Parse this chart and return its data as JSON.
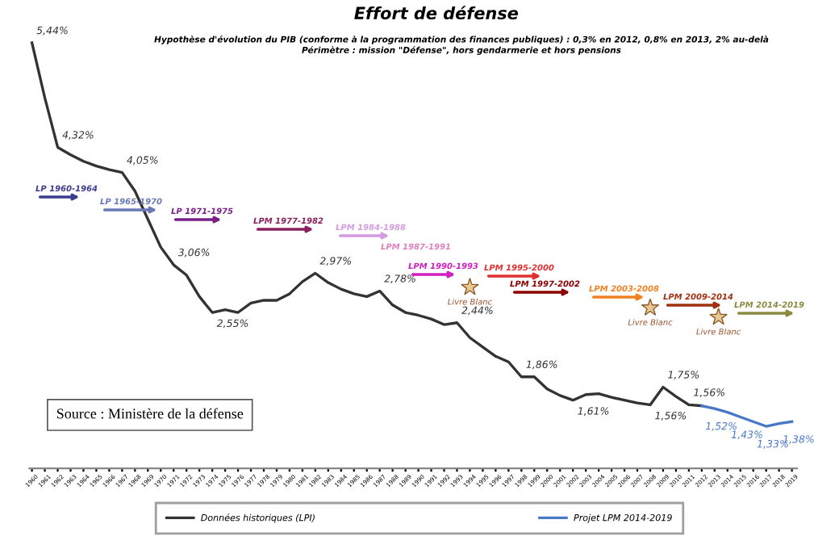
{
  "chart_data": {
    "type": "line",
    "title": "Effort de défense",
    "subtitle": "Hypothèse d'évolution du PIB (conforme à la programmation des finances publiques) : 0,3% en 2012, 0,8% en 2013, 2% au-delà\nPérimètre : mission \"Défense\", hors gendarmerie et hors pensions",
    "xlim": [
      1959.8,
      2019.4
    ],
    "xticks": [
      1960,
      1961,
      1962,
      1963,
      1964,
      1965,
      1966,
      1967,
      1968,
      1969,
      1970,
      1971,
      1972,
      1973,
      1974,
      1975,
      1976,
      1977,
      1978,
      1979,
      1980,
      1981,
      1982,
      1983,
      1984,
      1985,
      1986,
      1987,
      1988,
      1989,
      1990,
      1991,
      1992,
      1993,
      1994,
      1995,
      1996,
      1997,
      1998,
      1999,
      2000,
      2001,
      2002,
      2003,
      2004,
      2005,
      2006,
      2007,
      2008,
      2009,
      2010,
      2011,
      2012,
      2013,
      2014,
      2015,
      2016,
      2017,
      2018,
      2019
    ],
    "legend": "bottom",
    "grid": false,
    "marker": "none",
    "line_style": "solid",
    "series": [
      {
        "name": "Données historiques (LPI)",
        "color": "#333333",
        "x": [
          1960,
          1961,
          1962,
          1963,
          1964,
          1965,
          1966,
          1967,
          1968,
          1969,
          1970,
          1971,
          1972,
          1973,
          1974,
          1975,
          1976,
          1977,
          1978,
          1979,
          1980,
          1981,
          1982,
          1983,
          1984,
          1985,
          1986,
          1987,
          1988,
          1989,
          1990,
          1991,
          1992,
          1993,
          1994,
          1995,
          1996,
          1997,
          1998,
          1999,
          2000,
          2001,
          2002,
          2003,
          2004,
          2005,
          2006,
          2007,
          2008,
          2009,
          2010,
          2011,
          2012
        ],
        "values": [
          5.44,
          4.85,
          4.32,
          4.24,
          4.17,
          4.12,
          4.08,
          4.05,
          3.85,
          3.55,
          3.25,
          3.06,
          2.95,
          2.72,
          2.55,
          2.58,
          2.55,
          2.65,
          2.68,
          2.68,
          2.75,
          2.88,
          2.97,
          2.87,
          2.8,
          2.75,
          2.72,
          2.78,
          2.63,
          2.55,
          2.52,
          2.48,
          2.42,
          2.44,
          2.28,
          2.18,
          2.08,
          2.02,
          1.86,
          1.86,
          1.73,
          1.66,
          1.61,
          1.67,
          1.68,
          1.64,
          1.61,
          1.58,
          1.56,
          1.75,
          1.65,
          1.56,
          1.55
        ],
        "value_labels": [
          "5,44%",
          null,
          "4,32%",
          null,
          null,
          null,
          null,
          "4,05%",
          null,
          null,
          null,
          "3,06%",
          null,
          null,
          "2,55%",
          null,
          null,
          null,
          null,
          null,
          null,
          null,
          "2,97%",
          null,
          null,
          null,
          null,
          "2,78%",
          null,
          null,
          null,
          null,
          null,
          "2,44%",
          null,
          null,
          null,
          null,
          "1,86%",
          null,
          null,
          null,
          "1,61%",
          null,
          null,
          null,
          null,
          null,
          "1,56%",
          "1,75%",
          null,
          "1,56%",
          null
        ]
      },
      {
        "name": "Projet LPM 2014-2019",
        "color": "#4a78c8",
        "x": [
          2012,
          2013,
          2014,
          2015,
          2016,
          2017,
          2018,
          2019
        ],
        "values": [
          1.55,
          1.52,
          1.48,
          1.43,
          1.38,
          1.33,
          1.36,
          1.38
        ],
        "value_labels": [
          null,
          "1,52%",
          null,
          "1,43%",
          null,
          "1,33%",
          null,
          "1,38%"
        ]
      }
    ],
    "annotations": [
      "LP 1960-1964",
      "LP 1965-1970",
      "LP 1971-1975",
      "LPM 1977-1982",
      "LPM 1984-1988",
      "LPM 1987-1991",
      "LPM 1990-1993",
      "LPM 1995-2000",
      "LPM 1997-2002",
      "LPM 2003-2008",
      "LPM 2009-2014",
      "LPM 2014-2019",
      {
        "text": "Livre Blanc",
        "x": 1994,
        "y": 2.82
      },
      {
        "text": "Livre Blanc",
        "x": 2008,
        "y": 2.6
      },
      {
        "text": "Livre Blanc",
        "x": 2013.3,
        "y": 2.5
      },
      "Source : Ministère de la défense"
    ]
  }
}
